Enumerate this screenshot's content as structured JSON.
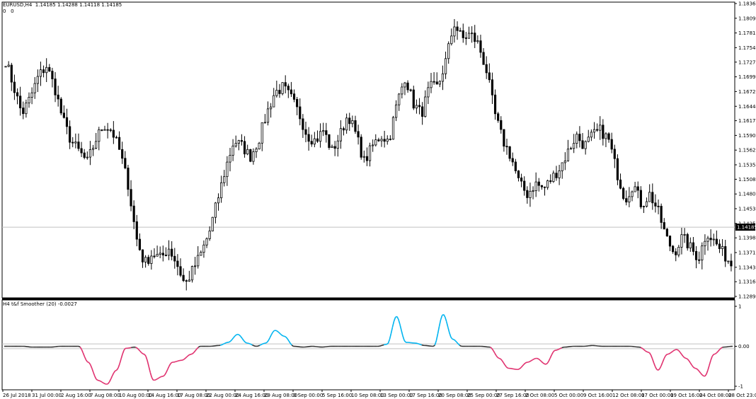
{
  "main": {
    "symbol_label": "EURUSD,H4",
    "ohlc": "1.14185 1.14288 1.14118 1.14185",
    "zero_a": "0",
    "zero_b": "0",
    "current_price": "1.14185"
  },
  "indicator": {
    "label": "H4 t&f Smoother (20) -0.0027"
  },
  "colors": {
    "candle": "#000000",
    "price_line": "#c0c0c0",
    "rising": "#00b4f0",
    "falling": "#e0306e",
    "flat": "#303030",
    "border": "#000000"
  },
  "chart_data": [
    {
      "type": "candlestick",
      "yticks": [
        "1.18365",
        "1.18090",
        "1.17815",
        "1.17540",
        "1.17270",
        "1.16995",
        "1.16720",
        "1.16444",
        "1.16175",
        "1.15900",
        "1.15625",
        "1.15350",
        "1.15080",
        "1.14805",
        "1.14530",
        "1.14255",
        "1.13985",
        "1.13710",
        "1.13435",
        "1.13165",
        "1.12890"
      ],
      "ylim": [
        1.1289,
        1.18365
      ],
      "last_price": 1.14185,
      "close_path": [
        1.173,
        1.168,
        1.163,
        1.166,
        1.17,
        1.172,
        1.168,
        1.162,
        1.158,
        1.156,
        1.154,
        1.158,
        1.161,
        1.16,
        1.156,
        1.15,
        1.14,
        1.135,
        1.137,
        1.136,
        1.138,
        1.135,
        1.131,
        1.134,
        1.137,
        1.141,
        1.147,
        1.153,
        1.158,
        1.157,
        1.155,
        1.158,
        1.163,
        1.167,
        1.168,
        1.166,
        1.163,
        1.159,
        1.158,
        1.16,
        1.156,
        1.159,
        1.163,
        1.159,
        1.154,
        1.157,
        1.159,
        1.158,
        1.165,
        1.17,
        1.165,
        1.163,
        1.168,
        1.168,
        1.173,
        1.18,
        1.177,
        1.178,
        1.176,
        1.171,
        1.163,
        1.158,
        1.155,
        1.15,
        1.148,
        1.15,
        1.149,
        1.151,
        1.153,
        1.156,
        1.159,
        1.157,
        1.159,
        1.16,
        1.158,
        1.152,
        1.147,
        1.15,
        1.146,
        1.148,
        1.145,
        1.14,
        1.137,
        1.14,
        1.138,
        1.136,
        1.141,
        1.139,
        1.137,
        1.135
      ]
    },
    {
      "type": "line",
      "yticks": [
        "1",
        "0.00",
        "-1"
      ],
      "ylim": [
        -1,
        1
      ],
      "values": [
        0,
        0,
        0,
        -0.02,
        -0.02,
        -0.02,
        0,
        0,
        0,
        -0.4,
        -0.85,
        -0.95,
        -0.6,
        -0.05,
        -0.02,
        -0.2,
        -0.85,
        -0.75,
        -0.4,
        -0.35,
        -0.2,
        0,
        0,
        0.02,
        0.1,
        0.3,
        0.08,
        0,
        0.08,
        0.4,
        0.25,
        0,
        -0.02,
        0,
        -0.02,
        0,
        0,
        0,
        0,
        0,
        0,
        0.05,
        0.75,
        0.1,
        0.08,
        0.02,
        0,
        0.8,
        0.18,
        0,
        0,
        0,
        -0.02,
        -0.3,
        -0.55,
        -0.58,
        -0.4,
        -0.3,
        -0.45,
        -0.1,
        -0.02,
        0,
        0,
        0.02,
        0,
        0,
        0,
        0,
        -0.02,
        -0.15,
        -0.6,
        -0.2,
        -0.08,
        -0.3,
        -0.55,
        -0.75,
        -0.2,
        -0.02,
        0
      ],
      "rising_color": "#00b4f0",
      "falling_color": "#e0306e"
    }
  ],
  "xticks": [
    "26 Jul 2018",
    "31 Jul 00:00",
    "2 Aug 16:00",
    "7 Aug 08:00",
    "10 Aug 00:00",
    "14 Aug 16:00",
    "17 Aug 08:00",
    "22 Aug 00:00",
    "24 Aug 16:00",
    "29 Aug 08:00",
    "3 Sep 00:00",
    "5 Sep 16:00",
    "10 Sep 08:00",
    "13 Sep 00:00",
    "17 Sep 16:00",
    "20 Sep 08:00",
    "25 Sep 00:00",
    "27 Sep 16:00",
    "2 Oct 08:00",
    "5 Oct 00:00",
    "9 Oct 16:00",
    "12 Oct 08:00",
    "17 Oct 00:00",
    "19 Oct 16:00",
    "24 Oct 08:00",
    "28 Oct 23:00"
  ]
}
